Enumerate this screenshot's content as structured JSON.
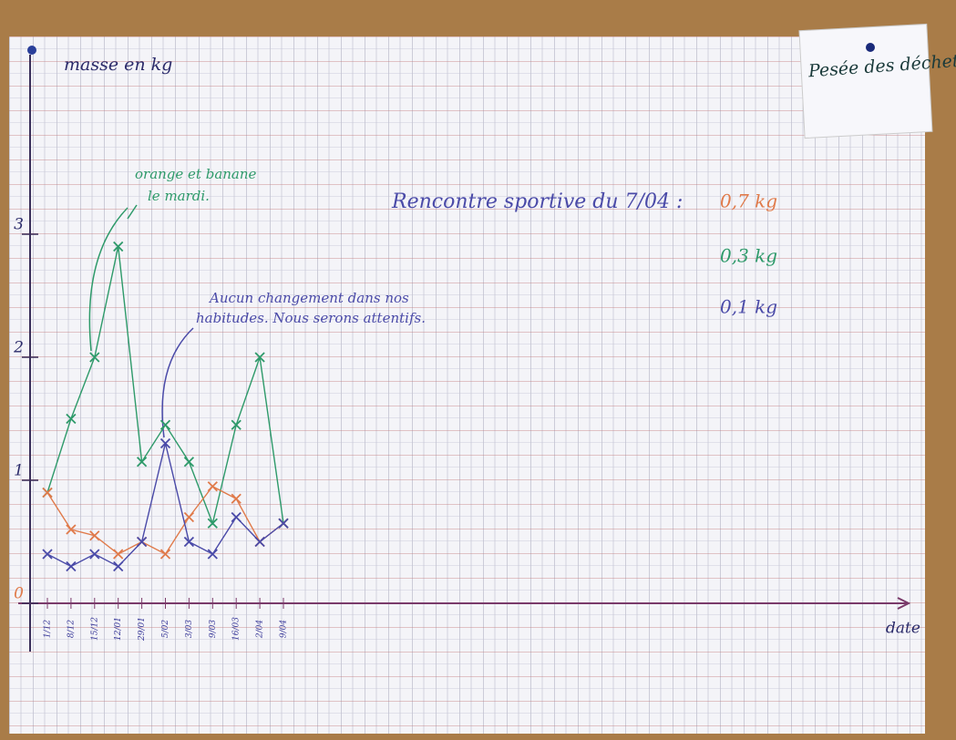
{
  "chart_data": {
    "type": "line",
    "y_label": "masse en kg",
    "x_label": "date",
    "note": "Pesée des déchets",
    "categories": [
      "1/12",
      "8/12",
      "15/12",
      "12/01",
      "29/01",
      "5/02",
      "3/03",
      "9/03",
      "16/03",
      "2/04",
      "9/04"
    ],
    "series": [
      {
        "color": "#2e9a6a",
        "values": [
          0.9,
          1.5,
          2.0,
          2.9,
          1.15,
          1.45,
          1.15,
          0.65,
          1.45,
          2.0,
          0.65
        ]
      },
      {
        "color": "#e07a4a",
        "values": [
          0.9,
          0.6,
          0.55,
          0.4,
          0.5,
          0.4,
          0.7,
          0.95,
          0.85,
          0.5,
          0.65
        ]
      },
      {
        "color": "#4a4aa8",
        "values": [
          0.4,
          0.3,
          0.4,
          0.3,
          0.5,
          1.3,
          0.5,
          0.4,
          0.7,
          0.5,
          0.65
        ]
      }
    ],
    "ylim": [
      0,
      4.5
    ],
    "yticks": [
      0,
      1,
      2,
      3
    ],
    "annotations": [
      {
        "text": "orange et banane",
        "color": "#2e9a6a"
      },
      {
        "text": "le mardi.",
        "color": "#2e9a6a"
      },
      {
        "text": "Aucun changement dans nos",
        "color": "#4a4aa8"
      },
      {
        "text": "habitudes. Nous serons attentifs.",
        "color": "#4a4aa8"
      },
      {
        "text": "Rencontre sportive du 7/04 :",
        "color": "#4a4aa8"
      },
      {
        "text": "0,7 kg",
        "color": "#e07a4a"
      },
      {
        "text": "0,3 kg",
        "color": "#2e9a6a"
      },
      {
        "text": "0,1 kg",
        "color": "#4a4aa8"
      }
    ]
  }
}
